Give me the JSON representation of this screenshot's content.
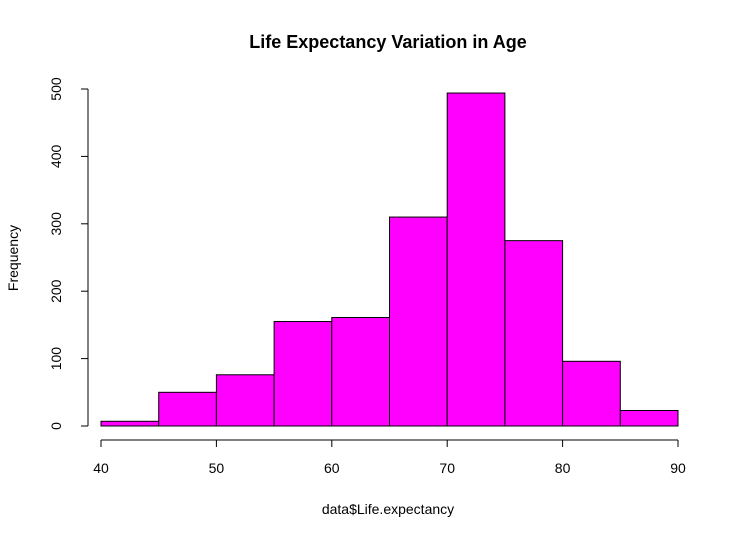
{
  "chart_data": {
    "type": "bar",
    "title": "Life Expectancy Variation in Age",
    "xlabel": "data$Life.expectancy",
    "ylabel": "Frequency",
    "bins": [
      {
        "from": 40,
        "to": 45,
        "count": 7
      },
      {
        "from": 45,
        "to": 50,
        "count": 50
      },
      {
        "from": 50,
        "to": 55,
        "count": 76
      },
      {
        "from": 55,
        "to": 60,
        "count": 155
      },
      {
        "from": 60,
        "to": 65,
        "count": 161
      },
      {
        "from": 65,
        "to": 70,
        "count": 310
      },
      {
        "from": 70,
        "to": 75,
        "count": 494
      },
      {
        "from": 75,
        "to": 80,
        "count": 275
      },
      {
        "from": 80,
        "to": 85,
        "count": 96
      },
      {
        "from": 85,
        "to": 90,
        "count": 23
      }
    ],
    "xlim": [
      40,
      90
    ],
    "ylim": [
      0,
      500
    ],
    "x_ticks": [
      "40",
      "50",
      "60",
      "70",
      "80",
      "90"
    ],
    "y_ticks": [
      "0",
      "100",
      "200",
      "300",
      "400",
      "500"
    ],
    "grid": false,
    "bar_color": "#ff00ff",
    "bar_border_color": "#000000"
  }
}
